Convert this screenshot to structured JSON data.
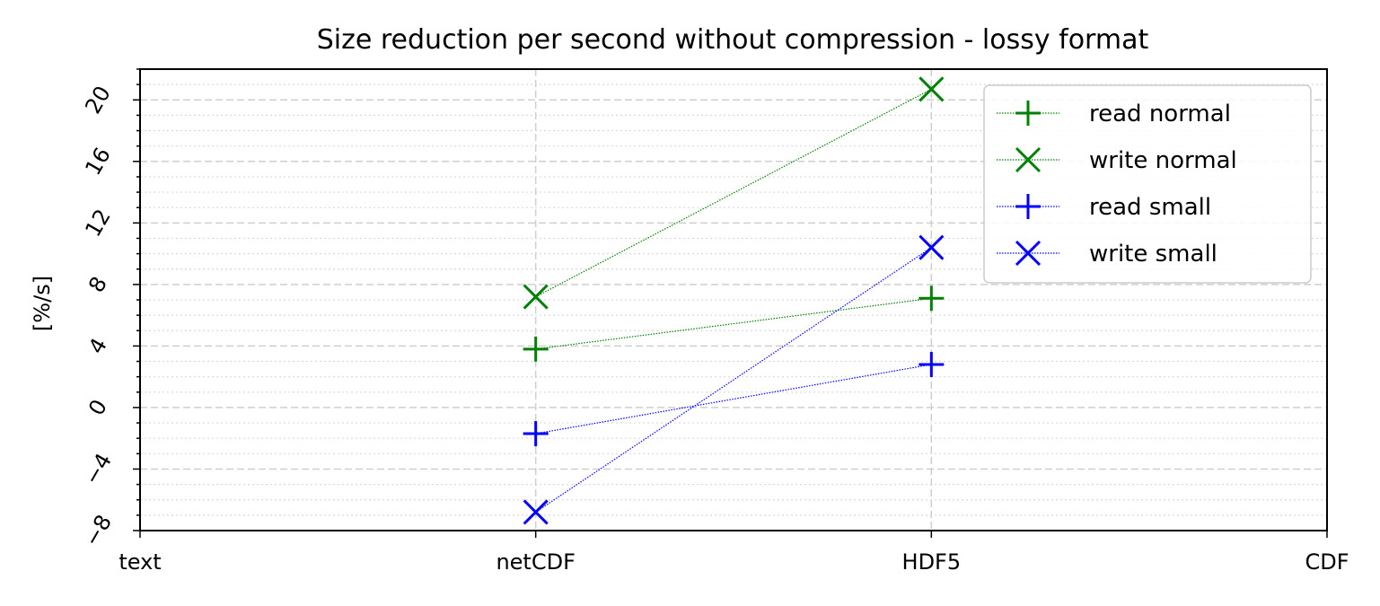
{
  "chart_data": {
    "type": "line",
    "title": "Size reduction per second without compression - lossy format",
    "xlabel": "",
    "ylabel": "[%/s]",
    "categories": [
      "text",
      "netCDF",
      "HDF5",
      "CDF"
    ],
    "ylim": [
      -8,
      22
    ],
    "yticks": [
      -8,
      -4,
      0,
      4,
      8,
      12,
      16,
      20
    ],
    "ytick_labels": [
      "−8",
      "−4",
      "0",
      "4",
      "8",
      "12",
      "16",
      "20"
    ],
    "minor_y_step": 1,
    "grid": true,
    "legend_position": "top-right",
    "series": [
      {
        "name": "read normal",
        "color": "#008000",
        "marker": "plus",
        "x": [
          "netCDF",
          "HDF5"
        ],
        "values": [
          3.8,
          7.1
        ]
      },
      {
        "name": "write normal",
        "color": "#008000",
        "marker": "x",
        "x": [
          "netCDF",
          "HDF5"
        ],
        "values": [
          7.2,
          20.7
        ]
      },
      {
        "name": "read small",
        "color": "#0000ff",
        "marker": "plus",
        "x": [
          "netCDF",
          "HDF5"
        ],
        "values": [
          -1.7,
          2.8
        ]
      },
      {
        "name": "write small",
        "color": "#0000ff",
        "marker": "x",
        "x": [
          "netCDF",
          "HDF5"
        ],
        "values": [
          -6.8,
          10.4
        ]
      }
    ]
  }
}
